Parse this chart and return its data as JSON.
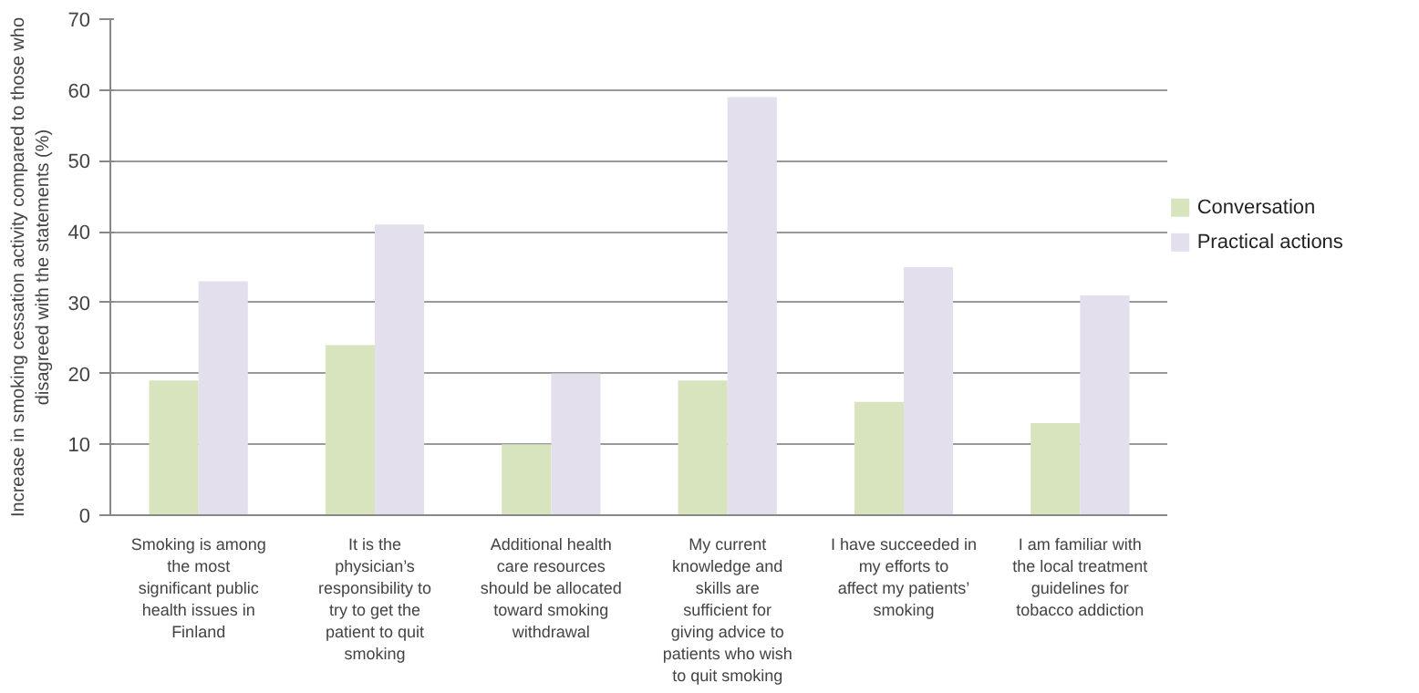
{
  "chart_data": {
    "type": "bar",
    "ylabel": "Increase in smoking cessation activity compared to those who disagreed with the statements (%)",
    "categories": [
      "Smoking is among the most significant public health issues in Finland",
      "It is the physician’s responsibility to try to get the patient to quit smoking",
      "Additional health care resources should be allocated toward smoking withdrawal",
      "My current knowledge and skills are sufficient for giving advice to patients who wish to quit smoking",
      "I have succeeded in my efforts to affect my patients’ smoking",
      "I am familiar with the local treatment guidelines for tobacco addiction"
    ],
    "series": [
      {
        "name": "Conversation",
        "color": "#d7e4bd",
        "values": [
          19,
          24,
          10,
          19,
          16,
          13
        ]
      },
      {
        "name": "Practical actions",
        "color": "#e4dfec",
        "values": [
          33,
          41,
          20,
          59,
          35,
          31
        ]
      }
    ],
    "ylim": [
      0,
      70
    ],
    "yticks": [
      0,
      10,
      20,
      30,
      40,
      50,
      60,
      70
    ],
    "grid": "y",
    "legend": "right"
  }
}
